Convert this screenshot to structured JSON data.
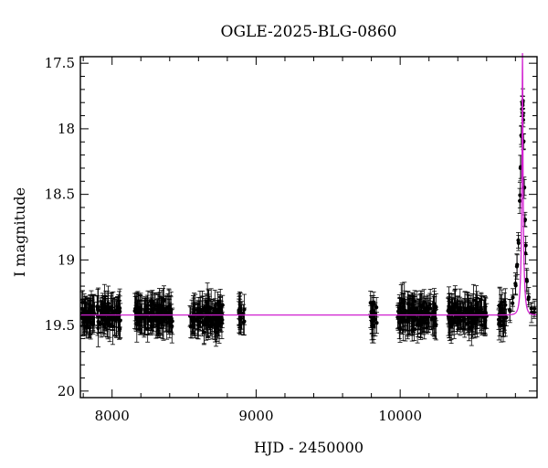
{
  "chart_data": {
    "type": "scatter",
    "title": "OGLE-2025-BLG-0860",
    "xlabel": "HJD - 2450000",
    "ylabel": "I magnitude",
    "xlim": [
      7780,
      10950
    ],
    "ylim": [
      20.05,
      17.45
    ],
    "y_inverted": true,
    "grid": false,
    "x_ticks": [
      8000,
      9000,
      10000
    ],
    "x_tick_labels": [
      "8000",
      "9000",
      "10000"
    ],
    "y_ticks": [
      17.5,
      18,
      18.5,
      19,
      19.5,
      20
    ],
    "y_tick_labels": [
      "17.5",
      "18",
      "18.5",
      "19",
      "19.5",
      "20"
    ],
    "colors": {
      "data": "#000000",
      "model": "#d020d0"
    },
    "series": [
      {
        "kind": "photometry",
        "baseline_mag": 19.42,
        "typical_error": 0.1,
        "seasons": [
          [
            7790,
            8060
          ],
          [
            8150,
            8420
          ],
          [
            8540,
            8770
          ],
          [
            8880,
            8920
          ],
          [
            9790,
            9840
          ],
          [
            9980,
            10250
          ],
          [
            10330,
            10600
          ],
          [
            10680,
            10950
          ]
        ],
        "peak": [
          [
            10760,
            19.38
          ],
          [
            10780,
            19.33
          ],
          [
            10800,
            19.18
          ],
          [
            10810,
            19.05
          ],
          [
            10820,
            18.85
          ],
          [
            10830,
            18.55
          ],
          [
            10835,
            18.3
          ],
          [
            10840,
            18.05
          ],
          [
            10845,
            17.85
          ],
          [
            10848,
            17.81
          ],
          [
            10850,
            17.82
          ],
          [
            10852,
            17.9
          ],
          [
            10855,
            18.1
          ],
          [
            10860,
            18.45
          ],
          [
            10865,
            18.7
          ],
          [
            10870,
            18.95
          ],
          [
            10878,
            19.15
          ],
          [
            10890,
            19.3
          ],
          [
            10910,
            19.37
          ],
          [
            10930,
            19.4
          ]
        ]
      },
      {
        "kind": "model",
        "baseline_mag": 19.42,
        "t0": 10849,
        "u0": 0.085,
        "tE": 19,
        "blend_fraction": 0.49
      }
    ]
  }
}
